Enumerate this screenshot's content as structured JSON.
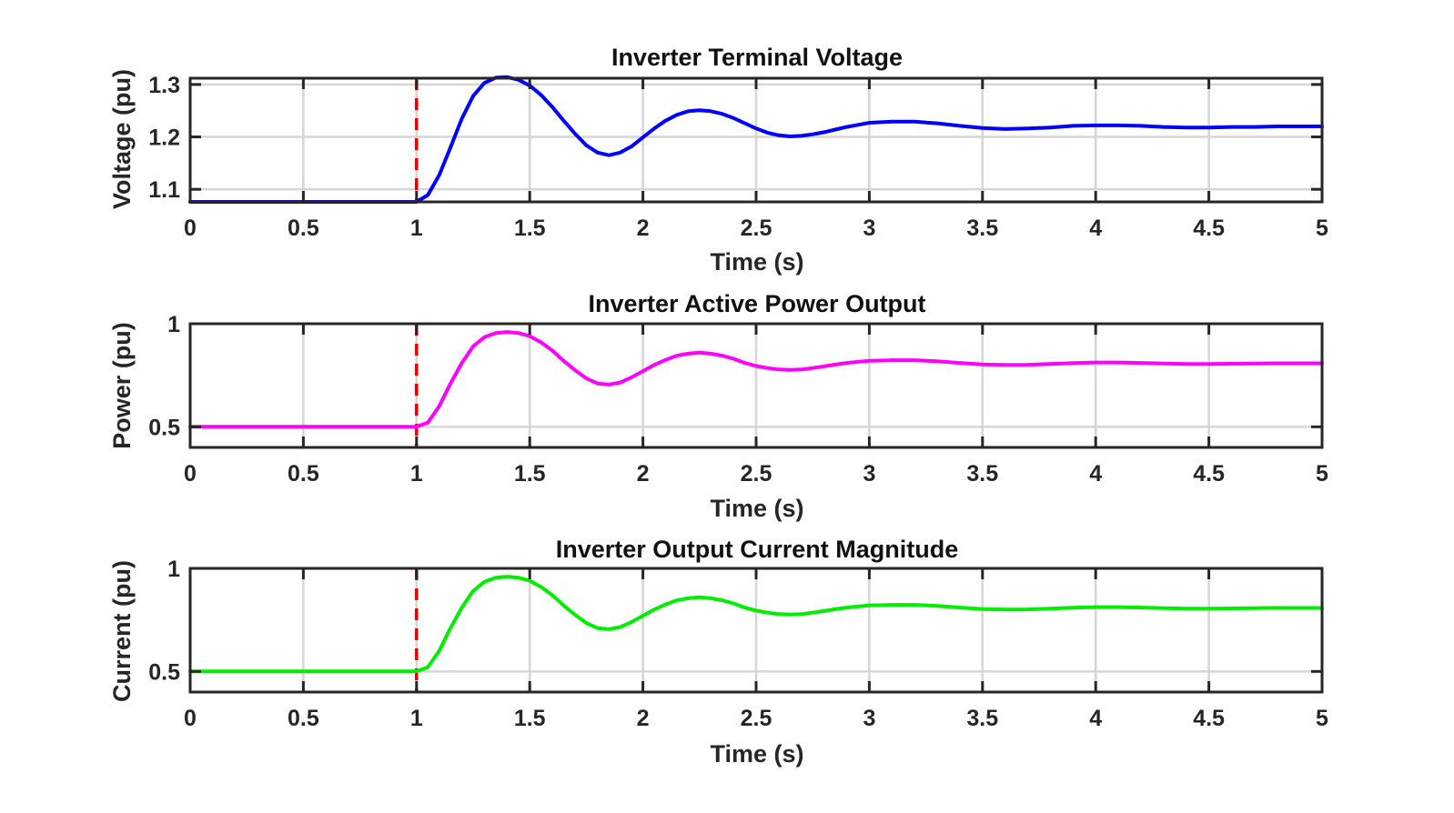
{
  "chart_data": [
    {
      "type": "line",
      "title": "Inverter Terminal Voltage",
      "xlabel": "Time (s)",
      "ylabel": "Voltage (pu)",
      "xlim": [
        0,
        5
      ],
      "ylim": [
        1.076,
        1.312
      ],
      "xticks": [
        0,
        0.5,
        1,
        1.5,
        2,
        2.5,
        3,
        3.5,
        4,
        4.5,
        5
      ],
      "xtick_labels": [
        "0",
        "0.5",
        "1",
        "1.5",
        "2",
        "2.5",
        "3",
        "3.5",
        "4",
        "4.5",
        "5"
      ],
      "yticks": [
        1.1,
        1.2,
        1.3
      ],
      "ytick_labels": [
        "1.1",
        "1.2",
        "1.3"
      ],
      "grid": true,
      "event_line": {
        "x": 1,
        "color": "#e60000",
        "style": "dashed"
      },
      "series": [
        {
          "color": "#0000ff",
          "x": [
            0,
            0.5,
            1.0,
            1.05,
            1.1,
            1.15,
            1.2,
            1.25,
            1.3,
            1.35,
            1.4,
            1.45,
            1.5,
            1.55,
            1.6,
            1.65,
            1.7,
            1.75,
            1.8,
            1.85,
            1.9,
            1.95,
            2.0,
            2.05,
            2.1,
            2.15,
            2.2,
            2.25,
            2.3,
            2.35,
            2.4,
            2.45,
            2.5,
            2.55,
            2.6,
            2.65,
            2.7,
            2.75,
            2.8,
            2.85,
            2.9,
            2.95,
            3.0,
            3.1,
            3.2,
            3.3,
            3.4,
            3.5,
            3.6,
            3.7,
            3.8,
            3.9,
            4.0,
            4.1,
            4.2,
            4.3,
            4.4,
            4.5,
            4.6,
            4.7,
            4.8,
            4.9,
            5.0
          ],
          "y": [
            1.076,
            1.076,
            1.076,
            1.089,
            1.127,
            1.18,
            1.235,
            1.278,
            1.303,
            1.313,
            1.314,
            1.309,
            1.298,
            1.28,
            1.257,
            1.231,
            1.206,
            1.184,
            1.17,
            1.165,
            1.17,
            1.182,
            1.199,
            1.216,
            1.231,
            1.242,
            1.249,
            1.251,
            1.249,
            1.244,
            1.236,
            1.226,
            1.216,
            1.208,
            1.203,
            1.201,
            1.202,
            1.205,
            1.209,
            1.214,
            1.219,
            1.223,
            1.227,
            1.229,
            1.229,
            1.226,
            1.221,
            1.217,
            1.215,
            1.216,
            1.218,
            1.221,
            1.222,
            1.222,
            1.221,
            1.219,
            1.218,
            1.218,
            1.219,
            1.219,
            1.22,
            1.22,
            1.22
          ]
        }
      ]
    },
    {
      "type": "line",
      "title": "Inverter Active Power Output",
      "xlabel": "Time (s)",
      "ylabel": "Power (pu)",
      "xlim": [
        0,
        5
      ],
      "ylim": [
        0.4,
        1.0
      ],
      "xticks": [
        0,
        0.5,
        1,
        1.5,
        2,
        2.5,
        3,
        3.5,
        4,
        4.5,
        5
      ],
      "xtick_labels": [
        "0",
        "0.5",
        "1",
        "1.5",
        "2",
        "2.5",
        "3",
        "3.5",
        "4",
        "4.5",
        "5"
      ],
      "yticks": [
        0.5,
        1
      ],
      "ytick_labels": [
        "0.5",
        "1"
      ],
      "grid": true,
      "event_line": {
        "x": 1,
        "color": "#e60000",
        "style": "dashed"
      },
      "series": [
        {
          "color": "#ff00ff",
          "x": [
            0,
            0.5,
            1.0,
            1.05,
            1.1,
            1.15,
            1.2,
            1.25,
            1.3,
            1.35,
            1.4,
            1.45,
            1.5,
            1.55,
            1.6,
            1.65,
            1.7,
            1.75,
            1.8,
            1.85,
            1.9,
            1.95,
            2.0,
            2.05,
            2.1,
            2.15,
            2.2,
            2.25,
            2.3,
            2.35,
            2.4,
            2.45,
            2.5,
            2.55,
            2.6,
            2.65,
            2.7,
            2.75,
            2.8,
            2.85,
            2.9,
            2.95,
            3.0,
            3.1,
            3.2,
            3.3,
            3.4,
            3.5,
            3.6,
            3.7,
            3.8,
            3.9,
            4.0,
            4.1,
            4.2,
            4.3,
            4.4,
            4.5,
            4.6,
            4.7,
            4.8,
            4.9,
            5.0
          ],
          "y": [
            0.5,
            0.5,
            0.5,
            0.52,
            0.6,
            0.71,
            0.81,
            0.89,
            0.935,
            0.955,
            0.96,
            0.955,
            0.94,
            0.91,
            0.87,
            0.82,
            0.775,
            0.735,
            0.71,
            0.705,
            0.715,
            0.74,
            0.77,
            0.8,
            0.825,
            0.845,
            0.855,
            0.86,
            0.855,
            0.845,
            0.83,
            0.81,
            0.795,
            0.785,
            0.778,
            0.776,
            0.778,
            0.785,
            0.793,
            0.802,
            0.81,
            0.815,
            0.82,
            0.823,
            0.823,
            0.818,
            0.81,
            0.803,
            0.8,
            0.801,
            0.805,
            0.809,
            0.812,
            0.812,
            0.81,
            0.807,
            0.805,
            0.805,
            0.806,
            0.807,
            0.808,
            0.808,
            0.808
          ]
        }
      ]
    },
    {
      "type": "line",
      "title": "Inverter Output Current Magnitude",
      "xlabel": "Time (s)",
      "ylabel": "Current (pu)",
      "xlim": [
        0,
        5
      ],
      "ylim": [
        0.4,
        1.0
      ],
      "xticks": [
        0,
        0.5,
        1,
        1.5,
        2,
        2.5,
        3,
        3.5,
        4,
        4.5,
        5
      ],
      "xtick_labels": [
        "0",
        "0.5",
        "1",
        "1.5",
        "2",
        "2.5",
        "3",
        "3.5",
        "4",
        "4.5",
        "5"
      ],
      "yticks": [
        0.5,
        1
      ],
      "ytick_labels": [
        "0.5",
        "1"
      ],
      "grid": true,
      "event_line": {
        "x": 1,
        "color": "#e60000",
        "style": "dashed"
      },
      "series": [
        {
          "color": "#00ee00",
          "x": [
            0,
            0.5,
            1.0,
            1.05,
            1.1,
            1.15,
            1.2,
            1.25,
            1.3,
            1.35,
            1.4,
            1.45,
            1.5,
            1.55,
            1.6,
            1.65,
            1.7,
            1.75,
            1.8,
            1.85,
            1.9,
            1.95,
            2.0,
            2.05,
            2.1,
            2.15,
            2.2,
            2.25,
            2.3,
            2.35,
            2.4,
            2.45,
            2.5,
            2.55,
            2.6,
            2.65,
            2.7,
            2.75,
            2.8,
            2.85,
            2.9,
            2.95,
            3.0,
            3.1,
            3.2,
            3.3,
            3.4,
            3.5,
            3.6,
            3.7,
            3.8,
            3.9,
            4.0,
            4.1,
            4.2,
            4.3,
            4.4,
            4.5,
            4.6,
            4.7,
            4.8,
            4.9,
            5.0
          ],
          "y": [
            0.5,
            0.5,
            0.5,
            0.52,
            0.6,
            0.71,
            0.81,
            0.89,
            0.935,
            0.955,
            0.96,
            0.955,
            0.94,
            0.91,
            0.87,
            0.82,
            0.775,
            0.735,
            0.71,
            0.705,
            0.715,
            0.74,
            0.77,
            0.8,
            0.825,
            0.845,
            0.855,
            0.86,
            0.855,
            0.845,
            0.83,
            0.81,
            0.795,
            0.785,
            0.778,
            0.776,
            0.778,
            0.785,
            0.793,
            0.802,
            0.81,
            0.815,
            0.82,
            0.823,
            0.823,
            0.818,
            0.81,
            0.803,
            0.8,
            0.801,
            0.805,
            0.809,
            0.812,
            0.812,
            0.81,
            0.807,
            0.805,
            0.805,
            0.806,
            0.807,
            0.808,
            0.808,
            0.808
          ]
        }
      ]
    }
  ]
}
